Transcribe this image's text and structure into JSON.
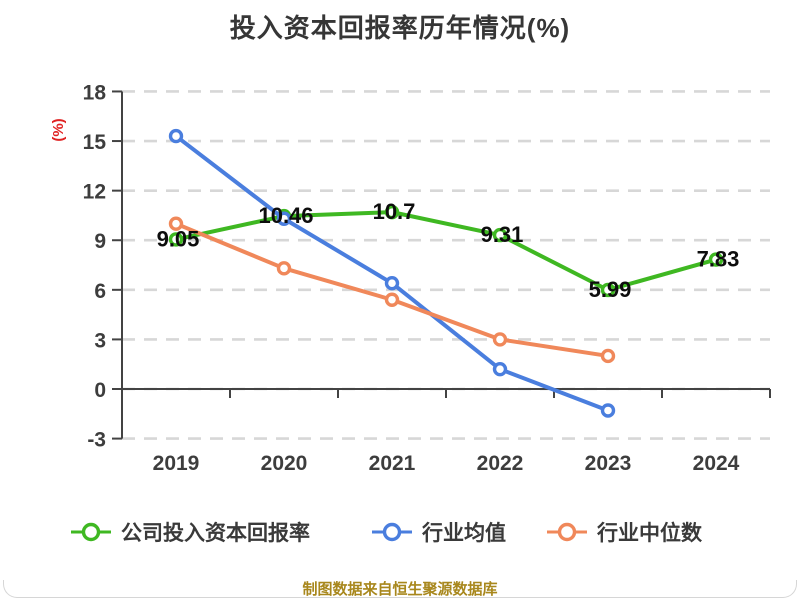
{
  "title": "投入资本回报率历年情况(%)",
  "footer": "制图数据来自恒生聚源数据库",
  "colors": {
    "title_text": "#363636",
    "footer_text": "#a8871c",
    "ylabel_text": "#e02222",
    "axis": "#434343",
    "gridline": "#d7d7d7"
  },
  "chart_data": {
    "type": "line",
    "title": "投入资本回报率历年情况(%)",
    "ylabel": "(%)",
    "xlabel": "",
    "categories": [
      "2019",
      "2020",
      "2021",
      "2022",
      "2023",
      "2024"
    ],
    "yticks": [
      18,
      15,
      12,
      9,
      6,
      3,
      0,
      -3
    ],
    "ylim": [
      -3,
      18
    ],
    "grid": "horizontal-dashed",
    "legend_position": "bottom",
    "series": [
      {
        "name": "公司投入资本回报率",
        "color": "#3fb822",
        "values": [
          9.05,
          10.46,
          10.7,
          9.31,
          5.99,
          7.83
        ],
        "labels": [
          "9.05",
          "10.46",
          "10.7",
          "9.31",
          "5.99",
          "7.83"
        ]
      },
      {
        "name": "行业均值",
        "color": "#4a7ede",
        "values": [
          15.3,
          10.3,
          6.4,
          1.2,
          -1.3,
          null
        ]
      },
      {
        "name": "行业中位数",
        "color": "#f0885a",
        "values": [
          10.0,
          7.3,
          5.4,
          3.0,
          2.0,
          null
        ]
      }
    ]
  }
}
